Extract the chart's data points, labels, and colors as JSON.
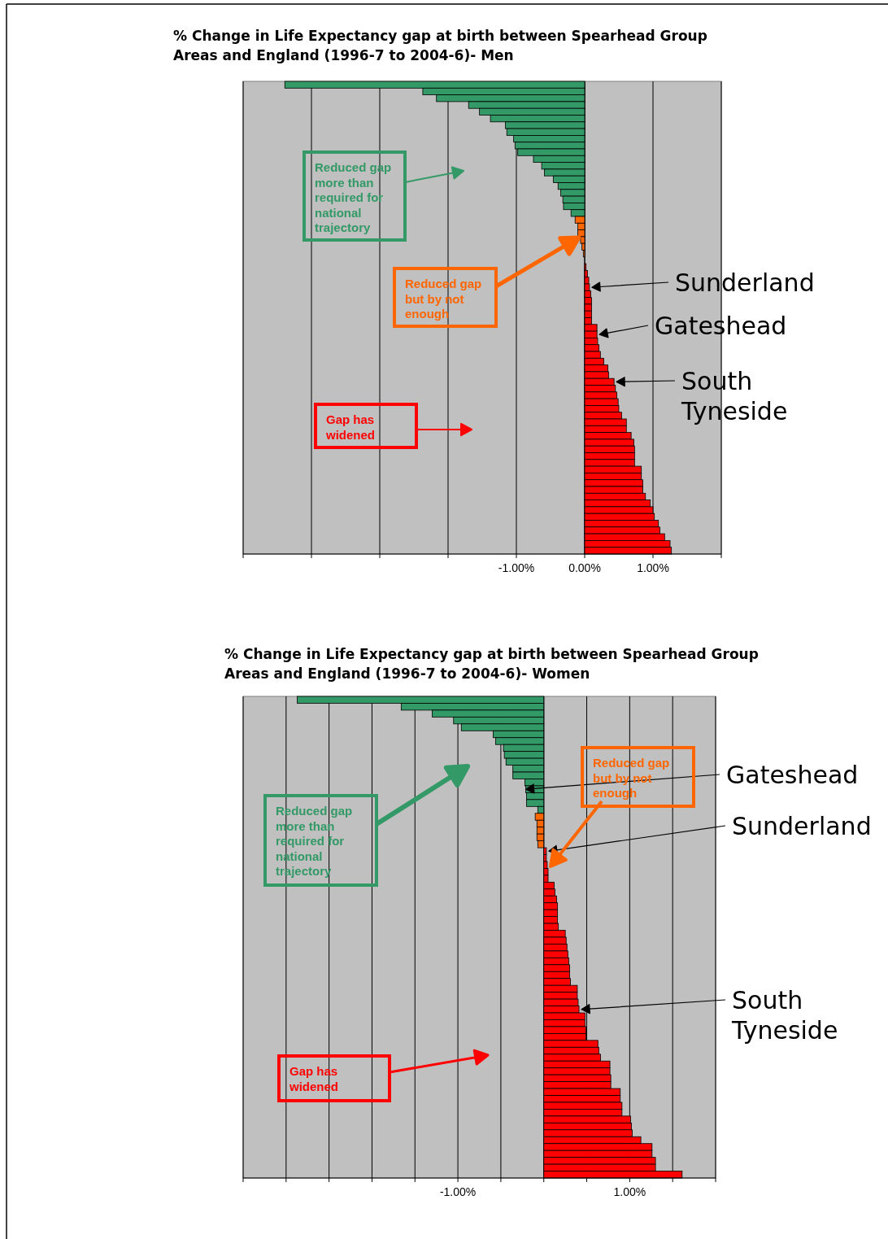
{
  "chart_data": [
    {
      "type": "bar",
      "orientation": "horizontal",
      "title": "% Change in Life Expectancy gap at birth between Spearhead Group Areas and England (1996-7 to 2004-6)- Men",
      "categories": [
        null,
        null,
        null,
        null,
        null,
        null,
        null,
        null,
        null,
        null,
        null,
        null,
        null,
        null,
        null,
        null,
        null,
        null,
        null,
        null,
        null,
        null,
        null,
        null,
        null,
        null,
        null,
        null,
        null,
        null,
        null,
        null,
        null,
        null,
        null,
        null,
        null,
        null,
        null,
        null,
        null,
        null,
        null,
        null,
        null,
        null,
        null,
        null,
        null,
        null,
        null,
        null,
        null,
        null,
        null,
        null,
        null,
        null,
        null,
        null,
        null,
        null,
        null,
        null,
        null,
        null,
        null,
        null,
        null,
        null
      ],
      "series": [
        {
          "name": "Reduced gap more than required for national trajectory",
          "color": "#339966",
          "values": [
            -4.39,
            -2.37,
            -2.17,
            -1.7,
            -1.54,
            -1.38,
            -1.16,
            -1.14,
            -1.04,
            -1.02,
            -0.98,
            -0.75,
            -0.63,
            -0.59,
            -0.46,
            -0.39,
            -0.35,
            -0.32,
            -0.31,
            -0.2,
            null,
            null,
            null,
            null,
            null,
            null,
            null,
            null,
            null,
            null,
            null,
            null,
            null,
            null,
            null,
            null,
            null,
            null,
            null,
            null,
            null,
            null,
            null,
            null,
            null,
            null,
            null,
            null,
            null,
            null,
            null,
            null,
            null,
            null,
            null,
            null,
            null,
            null,
            null,
            null,
            null,
            null,
            null,
            null,
            null,
            null,
            null,
            null,
            null,
            null
          ]
        },
        {
          "name": "Reduced gap but by not enough",
          "color": "#ff6600",
          "values": [
            null,
            null,
            null,
            null,
            null,
            null,
            null,
            null,
            null,
            null,
            null,
            null,
            null,
            null,
            null,
            null,
            null,
            null,
            null,
            null,
            -0.14,
            -0.1,
            -0.1,
            -0.06,
            -0.04,
            -0.02,
            null,
            null,
            null,
            null,
            null,
            null,
            null,
            null,
            null,
            null,
            null,
            null,
            null,
            null,
            null,
            null,
            null,
            null,
            null,
            null,
            null,
            null,
            null,
            null,
            null,
            null,
            null,
            null,
            null,
            null,
            null,
            null,
            null,
            null,
            null,
            null,
            null,
            null,
            null,
            null,
            null,
            null,
            null,
            null
          ]
        },
        {
          "name": "Gap has widened",
          "color": "#ff0000",
          "values": [
            null,
            null,
            null,
            null,
            null,
            null,
            null,
            null,
            null,
            null,
            null,
            null,
            null,
            null,
            null,
            null,
            null,
            null,
            null,
            null,
            null,
            null,
            null,
            null,
            null,
            null,
            null,
            0.02,
            0.04,
            0.06,
            0.07,
            0.09,
            0.1,
            0.1,
            0.1,
            0.1,
            0.18,
            0.18,
            0.19,
            0.21,
            0.23,
            0.28,
            0.34,
            0.35,
            0.43,
            0.45,
            0.47,
            0.49,
            0.5,
            0.54,
            0.61,
            0.61,
            0.68,
            0.72,
            0.73,
            0.73,
            0.73,
            0.83,
            0.83,
            0.85,
            0.85,
            0.89,
            0.96,
            1.0,
            1.02,
            1.08,
            1.1,
            1.17,
            1.25,
            1.27
          ]
        }
      ],
      "xlim": [
        -5,
        2
      ],
      "xticks": [
        {
          "value": -5,
          "label": null
        },
        {
          "value": -4,
          "label": null
        },
        {
          "value": -3,
          "label": null
        },
        {
          "value": -2,
          "label": null
        },
        {
          "value": -1,
          "label": "-1.00%"
        },
        {
          "value": 0,
          "label": "0.00%"
        },
        {
          "value": 1,
          "label": "1.00%"
        },
        {
          "value": 2,
          "label": null
        }
      ],
      "grid": "x",
      "annotations": [
        "Sunderland",
        "Gateshead",
        "South Tyneside"
      ]
    },
    {
      "type": "bar",
      "orientation": "horizontal",
      "title": "% Change in Life Expectancy gap at birth between Spearhead Group Areas and England (1996-7 to 2004-6)- Women",
      "categories": [
        null,
        null,
        null,
        null,
        null,
        null,
        null,
        null,
        null,
        null,
        null,
        null,
        null,
        null,
        null,
        null,
        null,
        null,
        null,
        null,
        null,
        null,
        null,
        null,
        null,
        null,
        null,
        null,
        null,
        null,
        null,
        null,
        null,
        null,
        null,
        null,
        null,
        null,
        null,
        null,
        null,
        null,
        null,
        null,
        null,
        null,
        null,
        null,
        null,
        null,
        null,
        null,
        null,
        null,
        null,
        null,
        null,
        null,
        null,
        null,
        null,
        null,
        null,
        null,
        null,
        null,
        null,
        null,
        null,
        null
      ],
      "series": [
        {
          "name": "Reduced gap more than required for national trajectory",
          "color": "#339966",
          "values": [
            -2.87,
            -1.66,
            -1.3,
            -1.05,
            -0.96,
            -0.59,
            -0.56,
            -0.47,
            -0.46,
            -0.44,
            -0.36,
            -0.36,
            -0.22,
            -0.21,
            -0.2,
            -0.2,
            -0.07,
            null,
            null,
            null,
            null,
            null,
            null,
            null,
            null,
            null,
            null,
            null,
            null,
            null,
            null,
            null,
            null,
            null,
            null,
            null,
            null,
            null,
            null,
            null,
            null,
            null,
            null,
            null,
            null,
            null,
            null,
            null,
            null,
            null,
            null,
            null,
            null,
            null,
            null,
            null,
            null,
            null,
            null,
            null,
            null,
            null,
            null,
            null,
            null,
            null,
            null,
            null,
            null,
            null
          ]
        },
        {
          "name": "Reduced gap but by not enough",
          "color": "#ff6600",
          "values": [
            null,
            null,
            null,
            null,
            null,
            null,
            null,
            null,
            null,
            null,
            null,
            null,
            null,
            null,
            null,
            null,
            null,
            -0.1,
            -0.08,
            -0.08,
            -0.08,
            -0.07,
            null,
            null,
            null,
            null,
            null,
            null,
            null,
            null,
            null,
            null,
            null,
            null,
            null,
            null,
            null,
            null,
            null,
            null,
            null,
            null,
            null,
            null,
            null,
            null,
            null,
            null,
            null,
            null,
            null,
            null,
            null,
            null,
            null,
            null,
            null,
            null,
            null,
            null,
            null,
            null,
            null,
            null,
            null,
            null,
            null,
            null,
            null,
            null
          ]
        },
        {
          "name": "Gap has widened",
          "color": "#ff0000",
          "values": [
            null,
            null,
            null,
            null,
            null,
            null,
            null,
            null,
            null,
            null,
            null,
            null,
            null,
            null,
            null,
            null,
            null,
            null,
            null,
            null,
            null,
            null,
            0.03,
            0.03,
            0.04,
            0.05,
            0.05,
            0.12,
            0.13,
            0.15,
            0.16,
            0.16,
            0.16,
            0.17,
            0.25,
            0.26,
            0.27,
            0.28,
            0.29,
            0.3,
            0.3,
            0.31,
            0.39,
            0.39,
            0.4,
            0.41,
            0.48,
            0.48,
            0.49,
            0.49,
            0.63,
            0.64,
            0.66,
            0.77,
            0.77,
            0.78,
            0.78,
            0.89,
            0.89,
            0.91,
            0.91,
            1.01,
            1.02,
            1.03,
            1.13,
            1.26,
            1.26,
            1.3,
            1.3,
            1.61
          ]
        }
      ],
      "xlim": [
        -3.5,
        2
      ],
      "xticks": [
        {
          "value": -3.5,
          "label": null
        },
        {
          "value": -3,
          "label": null
        },
        {
          "value": -2.5,
          "label": null
        },
        {
          "value": -2,
          "label": null
        },
        {
          "value": -1.5,
          "label": null
        },
        {
          "value": -1,
          "label": "-1.00%"
        },
        {
          "value": -0.5,
          "label": null
        },
        {
          "value": 0,
          "label": null
        },
        {
          "value": 0.5,
          "label": null
        },
        {
          "value": 1,
          "label": "1.00%"
        },
        {
          "value": 1.5,
          "label": null
        },
        {
          "value": 2,
          "label": null
        }
      ],
      "grid": "x",
      "annotations": [
        "Gateshead",
        "Sunderland",
        "South Tyneside"
      ]
    }
  ]
}
